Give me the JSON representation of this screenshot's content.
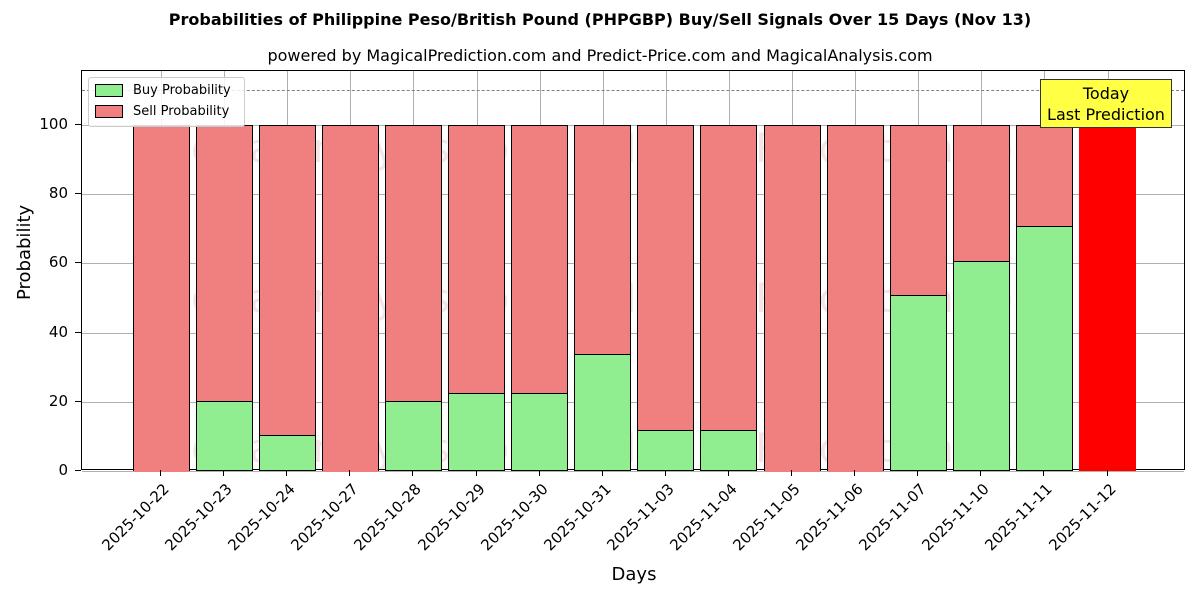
{
  "header": {
    "title": "Probabilities of Philippine Peso/British Pound (PHPGBP) Buy/Sell Signals Over 15 Days (Nov 13)",
    "subtitle": "powered by MagicalPrediction.com and Predict-Price.com and MagicalAnalysis.com"
  },
  "legend": {
    "buy": "Buy Probability",
    "sell": "Sell Probability"
  },
  "annotation": {
    "line1": "Today",
    "line2": "Last Prediction"
  },
  "watermarks": [
    "MagicalAnalysis.com",
    "MagicalPrediction.com"
  ],
  "colors": {
    "buy": "#90ee90",
    "sell": "#f08080",
    "today": "#ff0000",
    "annotation_bg": "#ffff44"
  },
  "chart_data": {
    "type": "bar",
    "stacked": true,
    "title": "Probabilities of Philippine Peso/British Pound (PHPGBP) Buy/Sell Signals Over 15 Days (Nov 13)",
    "subtitle": "powered by MagicalPrediction.com and Predict-Price.com and MagicalAnalysis.com",
    "xlabel": "Days",
    "ylabel": "Probability",
    "ylim": [
      0,
      115
    ],
    "yticks": [
      0,
      20,
      40,
      60,
      80,
      100
    ],
    "grid": true,
    "legend_position": "upper left",
    "reference_line": {
      "y": 110,
      "style": "dashed",
      "color": "#808080"
    },
    "categories": [
      "2025-10-22",
      "2025-10-23",
      "2025-10-24",
      "2025-10-27",
      "2025-10-28",
      "2025-10-29",
      "2025-10-30",
      "2025-10-31",
      "2025-11-03",
      "2025-11-04",
      "2025-11-05",
      "2025-11-06",
      "2025-11-07",
      "2025-11-10",
      "2025-11-11",
      "2025-11-12"
    ],
    "series": [
      {
        "name": "Buy Probability",
        "color": "#90ee90",
        "values": [
          0,
          20,
          10,
          0,
          20,
          22.2,
          22.2,
          33.5,
          11.5,
          11.5,
          0,
          0,
          50.5,
          60.4,
          70.5,
          0
        ]
      },
      {
        "name": "Sell Probability",
        "color": "#f08080",
        "values": [
          100,
          80,
          90,
          100,
          80,
          77.8,
          77.8,
          66.5,
          88.5,
          88.5,
          100,
          100,
          49.5,
          39.6,
          29.5,
          100
        ]
      }
    ],
    "highlight": {
      "category": "2025-11-12",
      "color": "#ff0000",
      "label": "Today Last Prediction"
    }
  }
}
